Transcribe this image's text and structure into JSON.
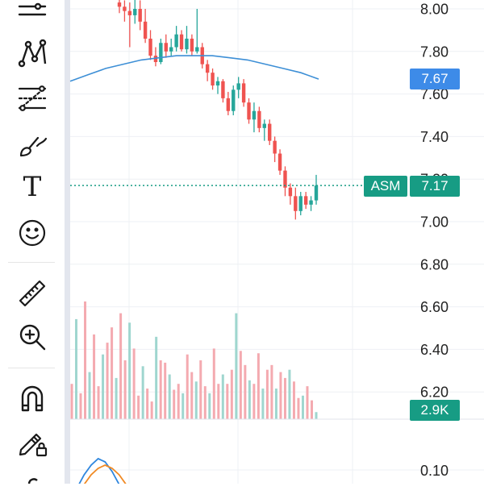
{
  "toolbar": {
    "tools": [
      {
        "name": "trend-lines-tool-icon",
        "icon": "lines"
      },
      {
        "name": "pattern-tool-icon",
        "icon": "pattern"
      },
      {
        "name": "fib-tool-icon",
        "icon": "fib"
      },
      {
        "name": "brush-tool-icon",
        "icon": "brush"
      },
      {
        "name": "text-tool-icon",
        "icon": "text",
        "glyph": "T"
      },
      {
        "name": "emoji-tool-icon",
        "icon": "smiley"
      },
      {
        "name": "ruler-tool-icon",
        "icon": "ruler"
      },
      {
        "name": "zoom-in-tool-icon",
        "icon": "zoom"
      },
      {
        "name": "magnet-tool-icon",
        "icon": "magnet"
      },
      {
        "name": "lock-drawings-tool-icon",
        "icon": "pencil-lock"
      },
      {
        "name": "more-tool-icon",
        "icon": "partial"
      }
    ]
  },
  "price_axis": {
    "ticks": [
      "8.00",
      "7.80",
      "7.60",
      "7.40",
      "7.20",
      "7.00",
      "6.80",
      "6.60",
      "6.40",
      "6.20"
    ],
    "range": [
      6.13,
      8.05
    ]
  },
  "oscillator_axis": {
    "ticks": [
      "0.10"
    ]
  },
  "tags": {
    "ma_value": "7.67",
    "symbol": "ASM",
    "last_price": "7.17",
    "volume": "2.9K"
  },
  "colors": {
    "up": "#26a69a",
    "down": "#ef5350",
    "ma_line": "#3d8fd6",
    "ma_tag": "#3d8be8",
    "price_tag": "#179c84",
    "osc_fast": "#2e86de",
    "osc_slow": "#f08a24"
  },
  "chart_data": {
    "type": "candlestick",
    "candles": [
      {
        "o": 8.03,
        "h": 8.05,
        "l": 7.98,
        "c": 8.01
      },
      {
        "o": 8.01,
        "h": 8.04,
        "l": 7.94,
        "c": 7.99
      },
      {
        "o": 7.99,
        "h": 8.03,
        "l": 7.82,
        "c": 7.97
      },
      {
        "o": 7.97,
        "h": 8.05,
        "l": 7.93,
        "c": 8.0
      },
      {
        "o": 8.0,
        "h": 8.04,
        "l": 7.9,
        "c": 7.94
      },
      {
        "o": 7.94,
        "h": 8.0,
        "l": 7.84,
        "c": 7.86
      },
      {
        "o": 7.86,
        "h": 7.9,
        "l": 7.76,
        "c": 7.78
      },
      {
        "o": 7.78,
        "h": 7.82,
        "l": 7.73,
        "c": 7.75
      },
      {
        "o": 7.75,
        "h": 7.86,
        "l": 7.74,
        "c": 7.84
      },
      {
        "o": 7.84,
        "h": 7.88,
        "l": 7.77,
        "c": 7.8
      },
      {
        "o": 7.8,
        "h": 7.86,
        "l": 7.78,
        "c": 7.82
      },
      {
        "o": 7.82,
        "h": 7.92,
        "l": 7.8,
        "c": 7.88
      },
      {
        "o": 7.88,
        "h": 7.9,
        "l": 7.8,
        "c": 7.81
      },
      {
        "o": 7.81,
        "h": 7.92,
        "l": 7.79,
        "c": 7.86
      },
      {
        "o": 7.86,
        "h": 7.88,
        "l": 7.78,
        "c": 7.8
      },
      {
        "o": 7.8,
        "h": 8.0,
        "l": 7.79,
        "c": 7.82
      },
      {
        "o": 7.82,
        "h": 7.84,
        "l": 7.72,
        "c": 7.74
      },
      {
        "o": 7.74,
        "h": 7.76,
        "l": 7.66,
        "c": 7.7
      },
      {
        "o": 7.7,
        "h": 7.72,
        "l": 7.62,
        "c": 7.64
      },
      {
        "o": 7.64,
        "h": 7.68,
        "l": 7.6,
        "c": 7.66
      },
      {
        "o": 7.66,
        "h": 7.67,
        "l": 7.56,
        "c": 7.58
      },
      {
        "o": 7.58,
        "h": 7.61,
        "l": 7.5,
        "c": 7.52
      },
      {
        "o": 7.52,
        "h": 7.64,
        "l": 7.5,
        "c": 7.62
      },
      {
        "o": 7.62,
        "h": 7.68,
        "l": 7.58,
        "c": 7.65
      },
      {
        "o": 7.65,
        "h": 7.67,
        "l": 7.54,
        "c": 7.56
      },
      {
        "o": 7.56,
        "h": 7.58,
        "l": 7.46,
        "c": 7.48
      },
      {
        "o": 7.48,
        "h": 7.56,
        "l": 7.42,
        "c": 7.52
      },
      {
        "o": 7.52,
        "h": 7.54,
        "l": 7.42,
        "c": 7.44
      },
      {
        "o": 7.44,
        "h": 7.48,
        "l": 7.38,
        "c": 7.46
      },
      {
        "o": 7.46,
        "h": 7.48,
        "l": 7.36,
        "c": 7.38
      },
      {
        "o": 7.38,
        "h": 7.4,
        "l": 7.28,
        "c": 7.32
      },
      {
        "o": 7.32,
        "h": 7.34,
        "l": 7.22,
        "c": 7.24
      },
      {
        "o": 7.24,
        "h": 7.26,
        "l": 7.12,
        "c": 7.16
      },
      {
        "o": 7.16,
        "h": 7.18,
        "l": 7.08,
        "c": 7.12
      },
      {
        "o": 7.12,
        "h": 7.16,
        "l": 7.01,
        "c": 7.05
      },
      {
        "o": 7.05,
        "h": 7.14,
        "l": 7.03,
        "c": 7.12
      },
      {
        "o": 7.12,
        "h": 7.14,
        "l": 7.06,
        "c": 7.08
      },
      {
        "o": 7.08,
        "h": 7.12,
        "l": 7.05,
        "c": 7.1
      },
      {
        "o": 7.1,
        "h": 7.22,
        "l": 7.08,
        "c": 7.17
      }
    ],
    "moving_average": [
      7.66,
      7.69,
      7.72,
      7.74,
      7.76,
      7.77,
      7.78,
      7.78,
      7.78,
      7.77,
      7.76,
      7.74,
      7.72,
      7.7,
      7.67
    ],
    "volume_relative": [
      0.3,
      0.85,
      0.22,
      1.0,
      0.4,
      0.72,
      0.28,
      0.55,
      0.65,
      0.78,
      0.35,
      0.9,
      0.5,
      0.82,
      0.6,
      0.2,
      0.45,
      0.26,
      0.15,
      0.7,
      0.5,
      0.48,
      0.38,
      0.25,
      0.3,
      0.22,
      0.55,
      0.4,
      0.32,
      0.5,
      0.28,
      0.22,
      0.6,
      0.3,
      0.38,
      0.3,
      0.42,
      0.9,
      0.58,
      0.46,
      0.33,
      0.3,
      0.56,
      0.26,
      0.42,
      0.46,
      0.26,
      0.4,
      0.35,
      0.42,
      0.32,
      0.18,
      0.2,
      0.28,
      0.16,
      0.06
    ],
    "oscillator": {
      "fast": [
        0.02,
        0.05,
        0.09,
        0.12,
        0.14,
        0.13,
        0.1,
        0.06,
        0.03,
        0.0
      ],
      "slow": [
        0.0,
        0.03,
        0.06,
        0.09,
        0.11,
        0.12,
        0.11,
        0.09,
        0.06,
        0.02
      ]
    }
  }
}
